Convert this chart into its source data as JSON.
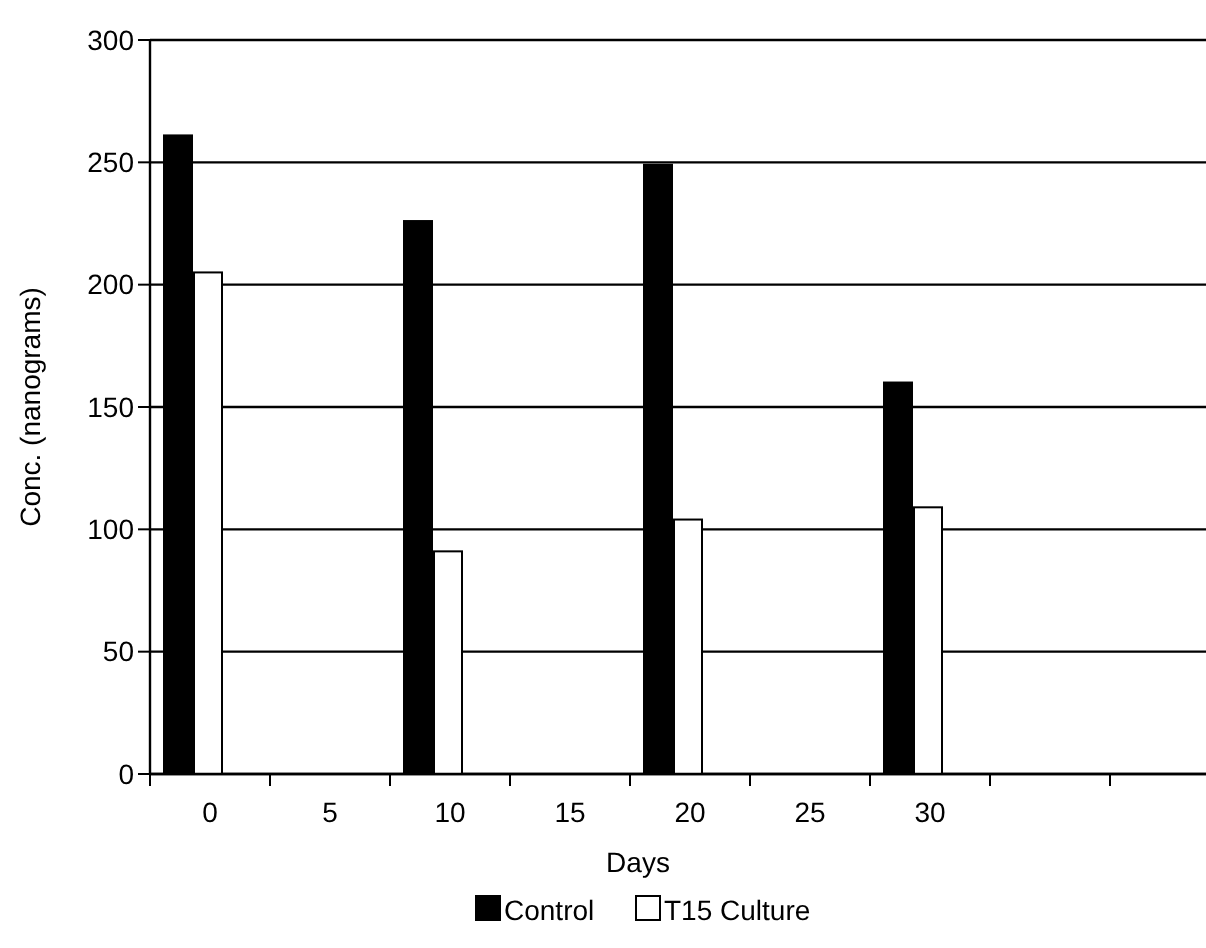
{
  "chart_data": {
    "type": "bar",
    "xlabel": "Days",
    "ylabel": "Conc. (nanograms)",
    "categories": [
      "0",
      "5",
      "10",
      "15",
      "20",
      "25",
      "30",
      null,
      null
    ],
    "series": [
      {
        "name": "Control",
        "color": "#000000",
        "values": [
          261,
          null,
          226,
          null,
          249,
          null,
          160,
          null,
          null
        ]
      },
      {
        "name": "T15 Culture",
        "color": "#ffffff",
        "values": [
          205,
          null,
          91,
          null,
          104,
          null,
          109,
          null,
          null
        ]
      }
    ],
    "ylim": [
      0,
      300
    ],
    "yticks": [
      0,
      50,
      100,
      150,
      200,
      250,
      300
    ],
    "grid": "y",
    "legend": "bottom"
  }
}
